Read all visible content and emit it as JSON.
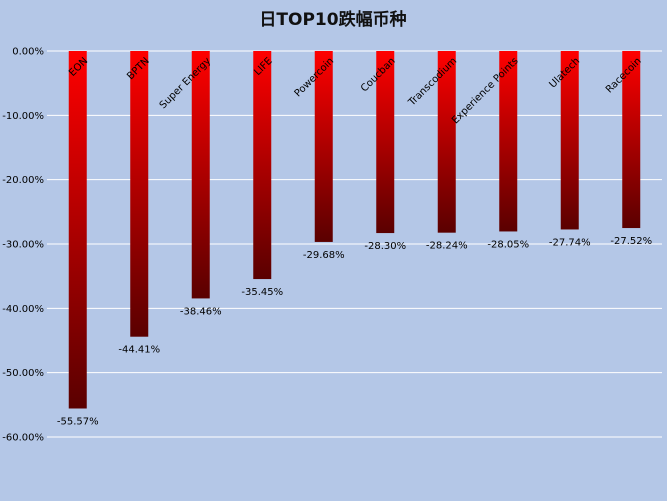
{
  "chart_data": {
    "type": "bar",
    "title": "日TOP10跌幅币种",
    "categories": [
      "EON",
      "BPTN",
      "Super Energy",
      "LIFE",
      "Powercoin",
      "Coucban",
      "Transcodium",
      "Experience Points",
      "Ulatech",
      "Racecoin"
    ],
    "values": [
      -55.57,
      -44.41,
      -38.46,
      -35.45,
      -29.68,
      -28.3,
      -28.24,
      -28.05,
      -27.74,
      -27.52
    ],
    "data_labels": [
      "-55.57%",
      "-44.41%",
      "-38.46%",
      "-35.45%",
      "-29.68%",
      "-28.30%",
      "-28.24%",
      "-28.05%",
      "-27.74%",
      "-27.52%"
    ],
    "y_ticks": [
      0,
      -10,
      -20,
      -30,
      -40,
      -50,
      -60
    ],
    "y_tick_labels": [
      "0.00%",
      "-10.00%",
      "-20.00%",
      "-30.00%",
      "-40.00%",
      "-50.00%",
      "-60.00%"
    ],
    "ylim": [
      -60,
      0
    ],
    "xlabel": "",
    "ylabel": "",
    "grid": true,
    "legend": "none",
    "colors": {
      "background": "#b4c7e7",
      "bar_top": "#ff0000",
      "bar_bottom": "#5a0000",
      "gridline": "#ffffff"
    }
  }
}
